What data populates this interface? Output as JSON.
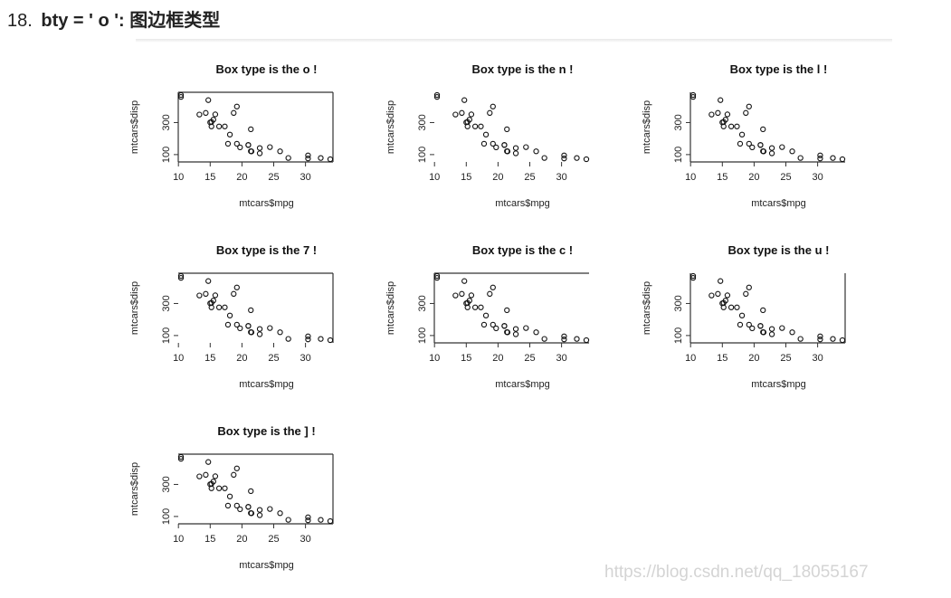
{
  "heading": {
    "number": "18.",
    "code": "bty = ' o ':",
    "description": "图边框类型"
  },
  "watermark": "https://blog.csdn.net/qq_18055167",
  "chart_data": [
    {
      "type": "scatter",
      "title": "Box type is the o !",
      "bty": "o",
      "xlabel": "mtcars$mpg",
      "ylabel": "mtcars$disp",
      "xticks": [
        "10",
        "15",
        "20",
        "25",
        "30"
      ],
      "yticks": [
        "100",
        "300"
      ],
      "ref": "mtcars"
    },
    {
      "type": "scatter",
      "title": "Box type is the n !",
      "bty": "n",
      "xlabel": "mtcars$mpg",
      "ylabel": "mtcars$disp",
      "xticks": [
        "10",
        "15",
        "20",
        "25",
        "30"
      ],
      "yticks": [
        "100",
        "300"
      ],
      "ref": "mtcars"
    },
    {
      "type": "scatter",
      "title": "Box type is the l !",
      "bty": "l",
      "xlabel": "mtcars$mpg",
      "ylabel": "mtcars$disp",
      "xticks": [
        "10",
        "15",
        "20",
        "25",
        "30"
      ],
      "yticks": [
        "100",
        "300"
      ],
      "ref": "mtcars"
    },
    {
      "type": "scatter",
      "title": "Box type is the 7 !",
      "bty": "7",
      "xlabel": "mtcars$mpg",
      "ylabel": "mtcars$disp",
      "xticks": [
        "10",
        "15",
        "20",
        "25",
        "30"
      ],
      "yticks": [
        "100",
        "300"
      ],
      "ref": "mtcars"
    },
    {
      "type": "scatter",
      "title": "Box type is the c !",
      "bty": "c",
      "xlabel": "mtcars$mpg",
      "ylabel": "mtcars$disp",
      "xticks": [
        "10",
        "15",
        "20",
        "25",
        "30"
      ],
      "yticks": [
        "100",
        "300"
      ],
      "ref": "mtcars"
    },
    {
      "type": "scatter",
      "title": "Box type is the u !",
      "bty": "u",
      "xlabel": "mtcars$mpg",
      "ylabel": "mtcars$disp",
      "xticks": [
        "10",
        "15",
        "20",
        "25",
        "30"
      ],
      "yticks": [
        "100",
        "300"
      ],
      "ref": "mtcars"
    },
    {
      "type": "scatter",
      "title": "Box type is the ] !",
      "bty": "]",
      "xlabel": "mtcars$mpg",
      "ylabel": "mtcars$disp",
      "xticks": [
        "10",
        "15",
        "20",
        "25",
        "30"
      ],
      "yticks": [
        "100",
        "300"
      ],
      "ref": "mtcars"
    }
  ],
  "mtcars": {
    "mpg": [
      21.0,
      21.0,
      22.8,
      21.4,
      18.7,
      18.1,
      14.3,
      24.4,
      22.8,
      19.2,
      17.8,
      16.4,
      17.3,
      15.2,
      10.4,
      10.4,
      14.7,
      32.4,
      30.4,
      33.9,
      21.5,
      15.5,
      15.2,
      13.3,
      19.2,
      27.3,
      26.0,
      30.4,
      15.8,
      19.7,
      15.0,
      21.4
    ],
    "disp": [
      160,
      160,
      108,
      258,
      360,
      225,
      360,
      146.7,
      140.8,
      167.6,
      167.6,
      275.8,
      275.8,
      275.8,
      472,
      460,
      440,
      78.7,
      75.7,
      71.1,
      120.1,
      318,
      304,
      350,
      400,
      79,
      120.3,
      95.1,
      351,
      145,
      301,
      121
    ],
    "xlim": [
      10.4,
      33.9
    ],
    "ylim": [
      71.1,
      472
    ]
  }
}
